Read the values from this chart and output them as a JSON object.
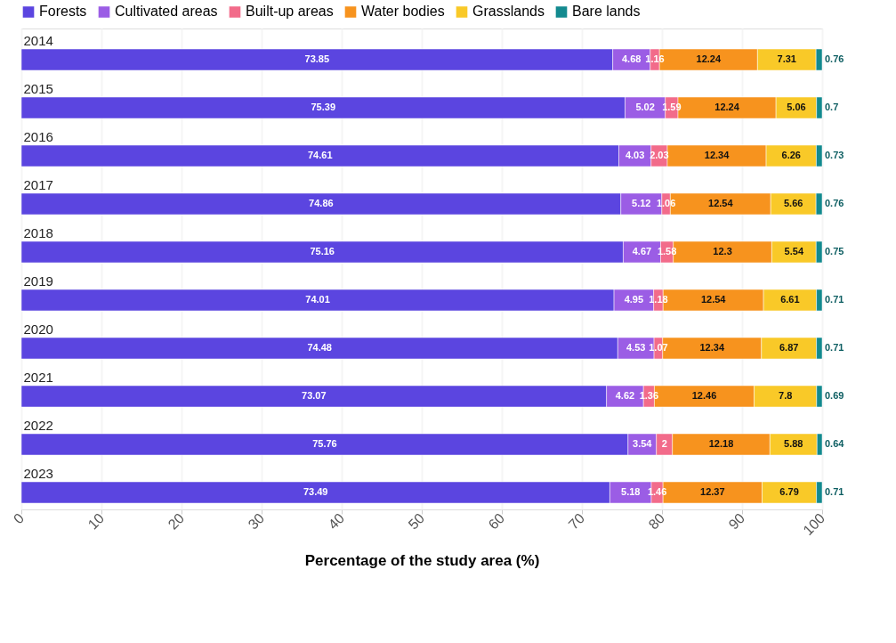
{
  "chart_data": {
    "type": "bar",
    "orientation": "horizontal",
    "stacked": true,
    "data_labels": true,
    "xlabel": "Percentage of the study area (%)",
    "categories": [
      "2014",
      "2015",
      "2016",
      "2017",
      "2018",
      "2019",
      "2020",
      "2021",
      "2022",
      "2023"
    ],
    "series": [
      {
        "name": "Forests",
        "color": "#5b45e0",
        "values": [
          73.85,
          75.39,
          74.61,
          74.86,
          75.16,
          74.01,
          74.48,
          73.07,
          75.76,
          73.49
        ]
      },
      {
        "name": "Cultivated areas",
        "color": "#9b5de5",
        "values": [
          4.68,
          5.02,
          4.03,
          5.12,
          4.67,
          4.95,
          4.53,
          4.62,
          3.54,
          5.18
        ]
      },
      {
        "name": "Built-up areas",
        "color": "#f26b8a",
        "values": [
          1.16,
          1.59,
          2.03,
          1.06,
          1.58,
          1.18,
          1.07,
          1.36,
          2,
          1.46
        ]
      },
      {
        "name": "Water bodies",
        "color": "#f7931e",
        "values": [
          12.24,
          12.24,
          12.34,
          12.54,
          12.3,
          12.54,
          12.34,
          12.46,
          12.18,
          12.37
        ]
      },
      {
        "name": "Grasslands",
        "color": "#f9c928",
        "values": [
          7.31,
          5.06,
          6.26,
          5.66,
          5.54,
          6.61,
          6.87,
          7.8,
          5.88,
          6.79
        ]
      },
      {
        "name": "Bare lands",
        "color": "#138a8f",
        "values": [
          0.76,
          0.7,
          0.73,
          0.76,
          0.75,
          0.71,
          0.71,
          0.69,
          0.64,
          0.71
        ]
      }
    ],
    "xlim": [
      0,
      100
    ],
    "xticks": [
      0,
      10,
      20,
      30,
      40,
      50,
      60,
      70,
      80,
      90,
      100
    ],
    "grid": "x",
    "legend": "top left"
  }
}
